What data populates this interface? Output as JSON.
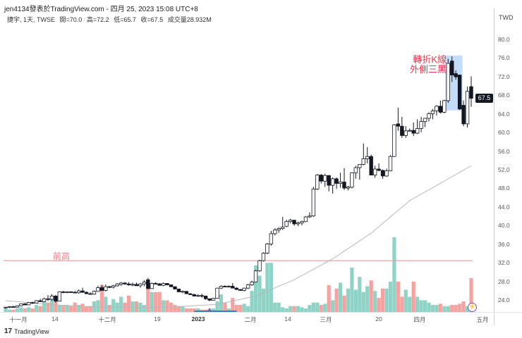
{
  "header": {
    "title": "jen4134發表於TradingView.com - 四月 25, 2023 15:08 UTC+8"
  },
  "legend": {
    "symbol": "捷宇, 1天, TWSE",
    "open": "開=70.0",
    "high": "高=72.2",
    "low": "低=65.7",
    "close": "收=67.5",
    "volume": "成交量28.932M"
  },
  "footer": {
    "logo": "17",
    "brand": "TradingView"
  },
  "colors": {
    "up_volume": "#8fd3c7",
    "down_volume": "#f4a3a0",
    "ma": "#b8b8b8",
    "prev_high": "#f08a8f",
    "highlight": "#bcd8f7",
    "price_label": "#131722"
  },
  "chart_data": {
    "type": "candlestick",
    "title": "捷宇, 1天, TWSE",
    "currency": "TWD",
    "ylim": [
      21,
      82
    ],
    "y_ticks": [
      "80.0",
      "76.0",
      "72.0",
      "68.0",
      "64.0",
      "60.0",
      "56.0",
      "52.0",
      "48.0",
      "44.0",
      "40.0",
      "36.0",
      "32.0",
      "28.0",
      "24.0"
    ],
    "last_price": "67.5",
    "x_ticks": [
      "十一月",
      "14",
      "十二月",
      "19",
      "2023",
      "二月",
      "14",
      "三月",
      "20",
      "四月",
      "五月"
    ],
    "candles_ohlcv": [
      [
        22.5,
        22.7,
        22.3,
        22.6,
        3
      ],
      [
        22.6,
        22.8,
        22.4,
        22.7,
        2
      ],
      [
        22.7,
        22.9,
        22.5,
        22.6,
        2
      ],
      [
        22.6,
        23.0,
        22.5,
        22.9,
        3
      ],
      [
        22.9,
        23.4,
        22.8,
        23.3,
        4
      ],
      [
        23.3,
        23.5,
        23.0,
        23.1,
        3
      ],
      [
        23.1,
        23.7,
        23.0,
        23.6,
        4
      ],
      [
        23.6,
        23.8,
        23.3,
        23.5,
        3
      ],
      [
        23.5,
        24.1,
        23.4,
        24.0,
        6
      ],
      [
        24.0,
        24.4,
        23.7,
        23.8,
        5
      ],
      [
        23.8,
        24.6,
        23.7,
        24.4,
        9
      ],
      [
        24.4,
        25.2,
        23.9,
        24.3,
        8
      ],
      [
        24.3,
        25.4,
        24.0,
        25.0,
        12
      ],
      [
        25.0,
        25.2,
        23.6,
        23.9,
        9
      ],
      [
        23.9,
        26.0,
        23.8,
        25.9,
        6
      ],
      [
        25.9,
        26.1,
        25.6,
        25.8,
        6
      ],
      [
        25.8,
        26.0,
        25.6,
        25.9,
        6
      ],
      [
        25.9,
        26.0,
        25.7,
        25.8,
        5
      ],
      [
        25.8,
        26.1,
        25.6,
        25.7,
        8
      ],
      [
        25.7,
        26.4,
        25.5,
        26.1,
        6
      ],
      [
        26.1,
        26.8,
        25.7,
        25.8,
        7
      ],
      [
        25.8,
        26.0,
        25.4,
        25.5,
        5
      ],
      [
        25.5,
        25.8,
        25.3,
        25.4,
        5
      ],
      [
        25.4,
        26.2,
        25.3,
        26.0,
        9
      ],
      [
        26.0,
        27.2,
        25.9,
        26.8,
        10
      ],
      [
        26.8,
        27.4,
        26.1,
        26.2,
        23
      ],
      [
        26.2,
        27.5,
        26.0,
        27.0,
        13
      ],
      [
        27.0,
        27.2,
        26.7,
        26.9,
        6
      ],
      [
        26.9,
        27.4,
        26.6,
        27.2,
        11
      ],
      [
        27.2,
        27.8,
        27.0,
        27.6,
        8
      ],
      [
        27.5,
        28.0,
        27.2,
        27.8,
        13
      ],
      [
        27.8,
        28.0,
        27.4,
        27.6,
        8
      ],
      [
        27.6,
        28.0,
        27.2,
        27.4,
        14
      ],
      [
        27.4,
        27.9,
        27.1,
        27.5,
        9
      ],
      [
        27.5,
        27.9,
        27.2,
        27.2,
        9
      ],
      [
        27.2,
        27.8,
        26.8,
        27.6,
        8
      ],
      [
        27.6,
        28.4,
        27.1,
        28.0,
        6
      ],
      [
        28.5,
        28.9,
        26.5,
        26.6,
        25
      ],
      [
        26.6,
        27.9,
        26.5,
        27.7,
        17
      ],
      [
        27.7,
        28.0,
        27.5,
        27.6,
        17
      ],
      [
        27.6,
        27.8,
        27.2,
        27.3,
        17
      ],
      [
        27.3,
        27.9,
        27.1,
        27.7,
        10
      ],
      [
        27.7,
        27.8,
        27.3,
        27.4,
        10
      ],
      [
        27.4,
        27.5,
        26.9,
        27.0,
        8
      ],
      [
        27.0,
        27.1,
        26.4,
        26.5,
        6
      ],
      [
        26.5,
        26.6,
        25.8,
        25.9,
        5
      ],
      [
        25.9,
        26.2,
        25.6,
        26.0,
        5
      ],
      [
        26.0,
        26.1,
        25.4,
        25.5,
        3
      ],
      [
        25.5,
        25.6,
        25.2,
        25.3,
        3
      ],
      [
        25.3,
        25.5,
        24.9,
        25.0,
        3
      ],
      [
        25.0,
        25.4,
        24.8,
        25.1,
        3
      ],
      [
        25.1,
        25.5,
        24.6,
        25.0,
        2
      ],
      [
        25.0,
        25.1,
        24.2,
        24.4,
        2
      ],
      [
        24.4,
        24.5,
        23.9,
        24.1,
        2
      ],
      [
        24.1,
        24.6,
        24.0,
        24.5,
        3
      ],
      [
        24.5,
        26.8,
        24.4,
        26.7,
        9
      ],
      [
        26.7,
        27.3,
        26.5,
        27.1,
        15
      ],
      [
        27.1,
        27.3,
        26.9,
        27.0,
        8
      ],
      [
        27.0,
        27.3,
        26.8,
        27.1,
        3
      ],
      [
        27.1,
        27.8,
        26.7,
        26.7,
        12
      ],
      [
        26.7,
        26.9,
        26.3,
        26.4,
        6
      ],
      [
        26.4,
        26.5,
        26.1,
        26.2,
        6
      ],
      [
        26.2,
        26.8,
        26.0,
        26.7,
        7
      ],
      [
        26.7,
        27.6,
        26.5,
        27.4,
        5
      ],
      [
        27.4,
        28.3,
        27.2,
        28.0,
        18
      ],
      [
        28.0,
        30.6,
        27.9,
        30.4,
        40
      ],
      [
        30.4,
        32.8,
        30.2,
        32.6,
        31
      ],
      [
        32.6,
        34.4,
        32.4,
        34.2,
        20
      ],
      [
        34.2,
        36.4,
        34.0,
        36.2,
        42
      ],
      [
        36.2,
        39.0,
        35.8,
        38.4,
        42
      ],
      [
        38.4,
        39.6,
        38.0,
        39.2,
        8
      ],
      [
        39.2,
        39.8,
        38.6,
        39.5,
        8
      ],
      [
        39.5,
        42.0,
        39.2,
        39.8,
        4
      ],
      [
        40.0,
        41.4,
        39.8,
        41.0,
        3
      ],
      [
        41.0,
        41.6,
        40.6,
        41.3,
        5
      ],
      [
        41.3,
        41.4,
        40.1,
        40.5,
        5
      ],
      [
        40.5,
        41.0,
        40.0,
        40.7,
        5
      ],
      [
        40.7,
        41.2,
        40.2,
        41.0,
        4
      ],
      [
        41.0,
        42.2,
        40.9,
        42.0,
        3
      ],
      [
        42.0,
        43.0,
        41.8,
        42.2,
        6
      ],
      [
        42.2,
        48.5,
        42.0,
        48.0,
        8
      ],
      [
        48.0,
        51.2,
        47.8,
        51.0,
        8
      ],
      [
        51.0,
        51.2,
        49.2,
        49.7,
        6
      ],
      [
        49.7,
        51.3,
        48.5,
        50.9,
        7
      ],
      [
        50.9,
        51.0,
        47.5,
        48.8,
        23
      ],
      [
        48.8,
        50.5,
        47.0,
        50.2,
        10
      ],
      [
        50.2,
        50.5,
        48.0,
        49.2,
        20
      ],
      [
        49.2,
        51.5,
        48.3,
        49.5,
        25
      ],
      [
        49.5,
        52.5,
        47.8,
        48.2,
        14
      ],
      [
        48.2,
        48.7,
        47.7,
        48.4,
        20
      ],
      [
        48.4,
        51.6,
        48.1,
        51.5,
        38
      ],
      [
        51.5,
        53.0,
        50.2,
        52.6,
        19
      ],
      [
        52.6,
        53.0,
        50.0,
        53.3,
        30
      ],
      [
        53.3,
        57.8,
        53.1,
        54.5,
        17
      ],
      [
        54.5,
        57.0,
        53.5,
        55.0,
        22
      ],
      [
        55.0,
        55.4,
        51.0,
        51.0,
        27
      ],
      [
        51.0,
        53.0,
        50.4,
        52.3,
        18
      ],
      [
        52.3,
        53.5,
        51.8,
        52.0,
        12
      ],
      [
        52.0,
        52.2,
        50.2,
        50.8,
        20
      ],
      [
        50.8,
        52.4,
        50.6,
        51.9,
        20
      ],
      [
        51.9,
        55.3,
        51.8,
        55.0,
        26
      ],
      [
        55.0,
        62.0,
        54.9,
        61.8,
        64
      ],
      [
        62.0,
        65.5,
        60.5,
        61.5,
        26
      ],
      [
        61.5,
        63.5,
        59.0,
        59.5,
        13
      ],
      [
        59.5,
        61.5,
        59.0,
        60.5,
        19
      ],
      [
        60.5,
        61.0,
        60.3,
        60.6,
        13
      ],
      [
        60.6,
        62.3,
        59.4,
        60.0,
        26
      ],
      [
        60.0,
        63.0,
        59.8,
        61.0,
        13
      ],
      [
        61.0,
        63.5,
        60.2,
        62.5,
        10
      ],
      [
        62.5,
        63.3,
        61.3,
        63.2,
        10
      ],
      [
        63.2,
        64.5,
        62.5,
        64.2,
        8
      ],
      [
        64.2,
        65.2,
        63.0,
        64.8,
        6
      ],
      [
        64.8,
        66.0,
        63.8,
        65.8,
        6
      ],
      [
        65.8,
        67.0,
        64.2,
        64.5,
        7
      ],
      [
        64.5,
        67.2,
        64.3,
        67.0,
        5
      ],
      [
        67.0,
        76.0,
        66.5,
        75.0,
        5
      ],
      [
        75.5,
        76.5,
        71.0,
        72.5,
        6
      ],
      [
        72.8,
        73.5,
        71.5,
        72.1,
        6
      ],
      [
        72.5,
        72.6,
        65.0,
        65.2,
        7
      ],
      [
        66.0,
        67.0,
        61.5,
        62.0,
        9
      ],
      [
        62.0,
        70.0,
        61.2,
        69.0,
        5
      ],
      [
        70.0,
        72.2,
        65.7,
        67.5,
        28.932
      ]
    ],
    "moving_average": [
      [
        0,
        24.0
      ],
      [
        10,
        23.3
      ],
      [
        20,
        22.7
      ],
      [
        40,
        22.5
      ],
      [
        55,
        23.2
      ],
      [
        65,
        25.0
      ],
      [
        75,
        28.5
      ],
      [
        85,
        33.0
      ],
      [
        95,
        38.5
      ],
      [
        105,
        45.5
      ],
      [
        121,
        53.0
      ]
    ],
    "prev_high": 32.6,
    "highlight_range": {
      "from_index": 115,
      "to_index": 118,
      "low": 64.9,
      "high": 76.7
    },
    "annotations": {
      "reversal": [
        "轉折K線",
        "外側三黑"
      ],
      "prev_high": "前高"
    }
  }
}
